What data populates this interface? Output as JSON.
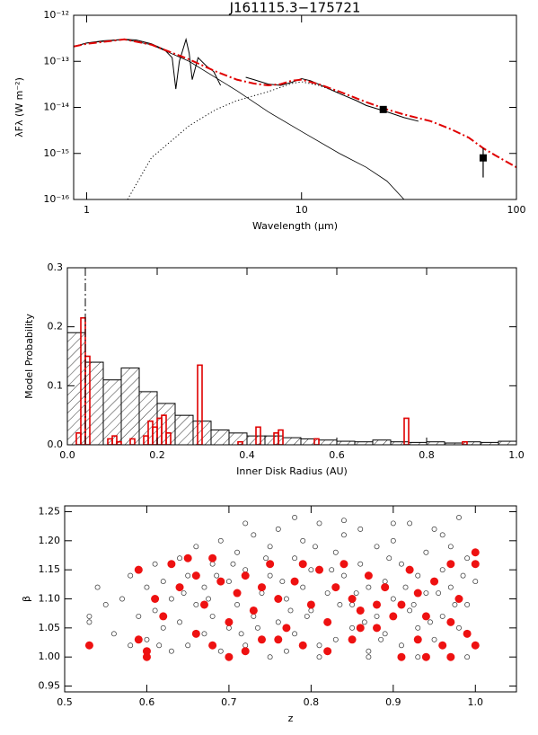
{
  "chart_data": [
    {
      "type": "line",
      "title": "J161115.3−175721",
      "xlabel": "Wavelength (μm)",
      "ylabel": "λFλ (W m⁻²)",
      "xscale": "log",
      "yscale": "log",
      "xlim": [
        0.87,
        100
      ],
      "ylim": [
        1e-16,
        1e-12
      ],
      "xticks": [
        1,
        10,
        100
      ],
      "yticks": [
        {
          "value": 1e-16,
          "label": "10⁻¹⁶"
        },
        {
          "value": 1e-15,
          "label": "10⁻¹⁵"
        },
        {
          "value": 1e-14,
          "label": "10⁻¹⁴"
        },
        {
          "value": 1e-13,
          "label": "10⁻¹³"
        },
        {
          "value": 1e-12,
          "label": "10⁻¹²"
        }
      ],
      "series": [
        {
          "color": "#000000",
          "dash": "solid",
          "width": 1,
          "x": [
            0.87,
            1.0,
            1.2,
            1.5,
            1.7,
            2.0,
            2.3,
            2.5,
            2.6,
            2.7,
            2.9,
            3.0,
            3.1,
            3.3,
            3.6,
            3.9,
            4.2,
            5.0,
            5.5,
            6,
            7,
            8,
            9,
            10,
            11,
            13,
            15,
            18,
            20,
            25,
            30,
            35
          ],
          "values": [
            2.1e-13,
            2.5e-13,
            2.8e-13,
            3e-13,
            2.9e-13,
            2.4e-13,
            1.8e-13,
            1.2e-13,
            2.5e-14,
            1e-13,
            3e-13,
            1.5e-13,
            4e-14,
            1.2e-13,
            8e-14,
            6e-14,
            3e-14,
            null,
            4.5e-14,
            4e-14,
            3.2e-14,
            3e-14,
            3.5e-14,
            4.2e-14,
            3.8e-14,
            2.7e-14,
            2e-14,
            1.4e-14,
            1.1e-14,
            8e-15,
            6e-15,
            5e-15
          ]
        },
        {
          "color": "#000000",
          "dash": "solid",
          "width": 0.8,
          "x": [
            0.87,
            1.0,
            1.5,
            2,
            3,
            5,
            7,
            10,
            15,
            20,
            25,
            30
          ],
          "values": [
            2.1e-13,
            2.5e-13,
            3e-13,
            2.3e-13,
            1e-13,
            2.3e-14,
            8e-15,
            3e-15,
            1e-15,
            5e-16,
            2.5e-16,
            1e-16
          ]
        },
        {
          "color": "#000000",
          "dash": "dotted",
          "width": 1,
          "x": [
            1.55,
            2,
            3,
            4,
            5,
            7,
            9,
            10,
            12,
            15
          ],
          "values": [
            1e-16,
            8e-16,
            4e-15,
            9e-15,
            1.4e-14,
            2.2e-14,
            3.3e-14,
            3.6e-14,
            3e-14,
            2.1e-14
          ]
        },
        {
          "color": "#e00000",
          "dash": "dashdot",
          "width": 2,
          "x": [
            0.87,
            1.0,
            1.5,
            2,
            3,
            4,
            5,
            6,
            7,
            8,
            9,
            10,
            12,
            15,
            20,
            25,
            30,
            40,
            50,
            60,
            70,
            80,
            100
          ],
          "values": [
            2.1e-13,
            2.4e-13,
            3e-13,
            2.3e-13,
            1.1e-13,
            6e-14,
            4e-14,
            3.3e-14,
            3e-14,
            3.2e-14,
            3.8e-14,
            4e-14,
            3.2e-14,
            2.2e-14,
            1.3e-14,
            9e-15,
            7e-15,
            5e-15,
            3.3e-15,
            2.2e-15,
            1.3e-15,
            9e-16,
            5e-16
          ]
        },
        {
          "color": "#000000",
          "marker": "square",
          "x": [
            24,
            70
          ],
          "values": [
            9e-15,
            8e-16
          ],
          "errors": [
            1e-15,
            5e-16
          ]
        }
      ]
    },
    {
      "type": "histogram",
      "xlabel": "Inner Disk Radius (AU)",
      "ylabel": "Model Probability",
      "xlim": [
        0,
        1
      ],
      "ylim": [
        0,
        0.3
      ],
      "xticks": [
        {
          "value": 0,
          "label": "0.0"
        },
        0.2,
        0.4,
        0.6,
        0.8,
        {
          "value": 1,
          "label": "1.0"
        }
      ],
      "yticks": [
        {
          "value": 0,
          "label": "0.0"
        },
        0.1,
        0.2,
        0.3
      ],
      "reference_x": 0.04,
      "series": [
        {
          "color": "#000000",
          "hatch": true,
          "bins": [
            0,
            0.04,
            0.08,
            0.12,
            0.16,
            0.2,
            0.24,
            0.28,
            0.32,
            0.36,
            0.4,
            0.44,
            0.48,
            0.52,
            0.56,
            0.6,
            0.64,
            0.68,
            0.72,
            0.76,
            0.8,
            0.84,
            0.88,
            0.92,
            0.96,
            1
          ],
          "values": [
            0.19,
            0.14,
            0.11,
            0.13,
            0.09,
            0.07,
            0.05,
            0.04,
            0.025,
            0.02,
            0.015,
            0.015,
            0.012,
            0.01,
            0.008,
            0.006,
            0.005,
            0.008,
            0.005,
            0.004,
            0.005,
            0.003,
            0.005,
            0.004,
            0.006
          ]
        },
        {
          "color": "#e00000",
          "hatch": false,
          "bins": [
            0,
            0.01,
            0.02,
            0.03,
            0.04,
            0.05,
            0.06,
            0.07,
            0.08,
            0.09,
            0.1,
            0.11,
            0.12,
            0.13,
            0.14,
            0.15,
            0.16,
            0.17,
            0.18,
            0.19,
            0.2,
            0.21,
            0.22,
            0.23,
            0.24,
            0.25,
            0.26,
            0.27,
            0.28,
            0.29,
            0.3,
            0.31,
            0.32,
            0.33,
            0.34,
            0.35,
            0.36,
            0.37,
            0.38,
            0.39,
            0.4,
            0.41,
            0.42,
            0.43,
            0.44,
            0.45,
            0.46,
            0.47,
            0.48,
            0.49,
            0.5,
            0.51,
            0.52,
            0.53,
            0.54,
            0.55,
            0.56,
            0.57,
            0.58,
            0.59,
            0.6,
            0.61,
            0.62,
            0.63,
            0.64,
            0.65,
            0.66,
            0.67,
            0.68,
            0.69,
            0.7,
            0.71,
            0.72,
            0.73,
            0.74,
            0.75,
            0.76,
            0.77,
            0.78,
            0.79,
            0.8,
            0.81,
            0.82,
            0.83,
            0.84,
            0.85,
            0.86,
            0.87,
            0.88,
            0.89,
            0.9,
            0.91,
            0.92,
            0.93,
            0.94,
            0.95,
            0.96,
            0.97,
            0.98,
            0.99,
            1
          ],
          "values": [
            0,
            0,
            0.02,
            0.215,
            0.15,
            0,
            0,
            0,
            0,
            0.01,
            0.015,
            0.005,
            0,
            0,
            0.01,
            0,
            0,
            0.015,
            0.04,
            0.03,
            0.045,
            0.05,
            0.02,
            0,
            0,
            0,
            0,
            0,
            0,
            0.135,
            0,
            0,
            0,
            0,
            0,
            0,
            0,
            0,
            0.005,
            0,
            0,
            0,
            0.03,
            0,
            0,
            0,
            0.02,
            0.025,
            0,
            0,
            0,
            0,
            0,
            0,
            0,
            0.01,
            0,
            0,
            0,
            0,
            0,
            0,
            0,
            0,
            0,
            0,
            0,
            0,
            0,
            0,
            0,
            0,
            0,
            0,
            0,
            0.045,
            0,
            0,
            0,
            0,
            0,
            0,
            0,
            0,
            0,
            0,
            0,
            0,
            0.005,
            0,
            0,
            0,
            0,
            0,
            0,
            0,
            0,
            0,
            0,
            0
          ]
        }
      ]
    },
    {
      "type": "scatter",
      "xlabel": "z",
      "ylabel": "β",
      "xlim": [
        0.5,
        1.05
      ],
      "ylim": [
        0.94,
        1.26
      ],
      "xticks": [
        0.5,
        0.6,
        0.7,
        0.8,
        0.9,
        {
          "value": 1,
          "label": "1.0"
        }
      ],
      "yticks": [
        0.95,
        {
          "value": 1,
          "label": "1.00"
        },
        1.05,
        {
          "value": 1.1,
          "label": "1.10"
        },
        1.15,
        {
          "value": 1.2,
          "label": "1.20"
        },
        1.25
      ],
      "series": [
        {
          "color": "#333333",
          "filled": false,
          "x": [
            0.53,
            0.53,
            0.54,
            0.55,
            0.56,
            0.57,
            0.58,
            0.58,
            0.59,
            0.6,
            0.6,
            0.61,
            0.61,
            0.62,
            0.62,
            0.63,
            0.63,
            0.64,
            0.64,
            0.65,
            0.65,
            0.66,
            0.66,
            0.67,
            0.67,
            0.68,
            0.68,
            0.69,
            0.69,
            0.7,
            0.7,
            0.71,
            0.71,
            0.72,
            0.72,
            0.73,
            0.73,
            0.74,
            0.74,
            0.75,
            0.75,
            0.76,
            0.76,
            0.77,
            0.77,
            0.78,
            0.78,
            0.79,
            0.79,
            0.8,
            0.8,
            0.81,
            0.81,
            0.82,
            0.82,
            0.83,
            0.83,
            0.84,
            0.84,
            0.85,
            0.85,
            0.86,
            0.86,
            0.87,
            0.87,
            0.88,
            0.88,
            0.89,
            0.89,
            0.9,
            0.9,
            0.91,
            0.91,
            0.92,
            0.92,
            0.93,
            0.93,
            0.94,
            0.94,
            0.95,
            0.95,
            0.96,
            0.96,
            0.97,
            0.97,
            0.98,
            0.98,
            0.99,
            0.99,
            1,
            1,
            0.675,
            0.705,
            0.735,
            0.765,
            0.795,
            0.825,
            0.855,
            0.885,
            0.915,
            0.945,
            0.975,
            0.645,
            0.615,
            0.685,
            0.715,
            0.745,
            0.775,
            0.805,
            0.835,
            0.865,
            0.895,
            0.925,
            0.955,
            0.985,
            0.72,
            0.78,
            0.84,
            0.9,
            0.96,
            0.75,
            0.81,
            0.87,
            0.93,
            0.99
          ],
          "values": [
            1.07,
            1.06,
            1.12,
            1.09,
            1.04,
            1.1,
            1.02,
            1.14,
            1.07,
            1.12,
            1.03,
            1.16,
            1.08,
            1.05,
            1.13,
            1.01,
            1.1,
            1.17,
            1.06,
            1.14,
            1.02,
            1.19,
            1.09,
            1.04,
            1.12,
            1.16,
            1.07,
            1.2,
            1.01,
            1.13,
            1.05,
            1.18,
            1.09,
            1.02,
            1.15,
            1.21,
            1.07,
            1.11,
            1.03,
            1.19,
            1.14,
            1.06,
            1.22,
            1.1,
            1.01,
            1.17,
            1.04,
            1.12,
            1.2,
            1.08,
            1.15,
            1.02,
            1.23,
            1.11,
            1.06,
            1.18,
            1.03,
            1.14,
            1.21,
            1.09,
            1.05,
            1.16,
            1.22,
            1.12,
            1.01,
            1.19,
            1.07,
            1.13,
            1.04,
            1.2,
            1.1,
            1.16,
            1.02,
            1.23,
            1.08,
            1.14,
            1.05,
            1.18,
            1.11,
            1.22,
            1.03,
            1.15,
            1.07,
            1.19,
            1.12,
            1.24,
            1.05,
            1.17,
            1.09,
            1.13,
            1.02,
            1.1,
            1.16,
            1.05,
            1.13,
            1.07,
            1.15,
            1.11,
            1.03,
            1.12,
            1.06,
            1.09,
            1.11,
            1.02,
            1.14,
            1.04,
            1.17,
            1.08,
            1.19,
            1.09,
            1.06,
            1.17,
            1.09,
            1.11,
            1.14,
            1.23,
            1.24,
            1.235,
            1.23,
            1.21,
            1,
            1,
            1,
            1,
            1
          ]
        },
        {
          "color": "#ee1111",
          "filled": true,
          "x": [
            0.53,
            0.59,
            0.59,
            0.6,
            0.6,
            0.61,
            0.62,
            0.63,
            0.64,
            0.65,
            0.66,
            0.67,
            0.68,
            0.68,
            0.69,
            0.7,
            0.71,
            0.72,
            0.72,
            0.73,
            0.74,
            0.75,
            0.76,
            0.77,
            0.78,
            0.79,
            0.8,
            0.81,
            0.82,
            0.83,
            0.84,
            0.85,
            0.85,
            0.86,
            0.87,
            0.88,
            0.89,
            0.9,
            0.91,
            0.92,
            0.93,
            0.93,
            0.94,
            0.95,
            0.96,
            0.97,
            0.97,
            0.98,
            0.99,
            1,
            1,
            1,
            0.7,
            0.76,
            0.82,
            0.88,
            0.94,
            0.66,
            0.74,
            0.79,
            0.86,
            0.91,
            0.97
          ],
          "values": [
            1.02,
            1.15,
            1.03,
            1,
            1.01,
            1.1,
            1.07,
            1.16,
            1.12,
            1.17,
            1.04,
            1.09,
            1.17,
            1.02,
            1.13,
            1.06,
            1.11,
            1.01,
            1.14,
            1.08,
            1.03,
            1.16,
            1.1,
            1.05,
            1.13,
            1.02,
            1.09,
            1.15,
            1.06,
            1.12,
            1.16,
            1.03,
            1.1,
            1.08,
            1.14,
            1.05,
            1.12,
            1.07,
            1,
            1.15,
            1.03,
            1.11,
            1.07,
            1.13,
            1.02,
            1.06,
            1.16,
            1.1,
            1.04,
            1.16,
            1.18,
            1.02,
            1,
            1.03,
            1.01,
            1.09,
            1,
            1.14,
            1.12,
            1.16,
            1.05,
            1.09,
            1
          ]
        }
      ]
    }
  ]
}
